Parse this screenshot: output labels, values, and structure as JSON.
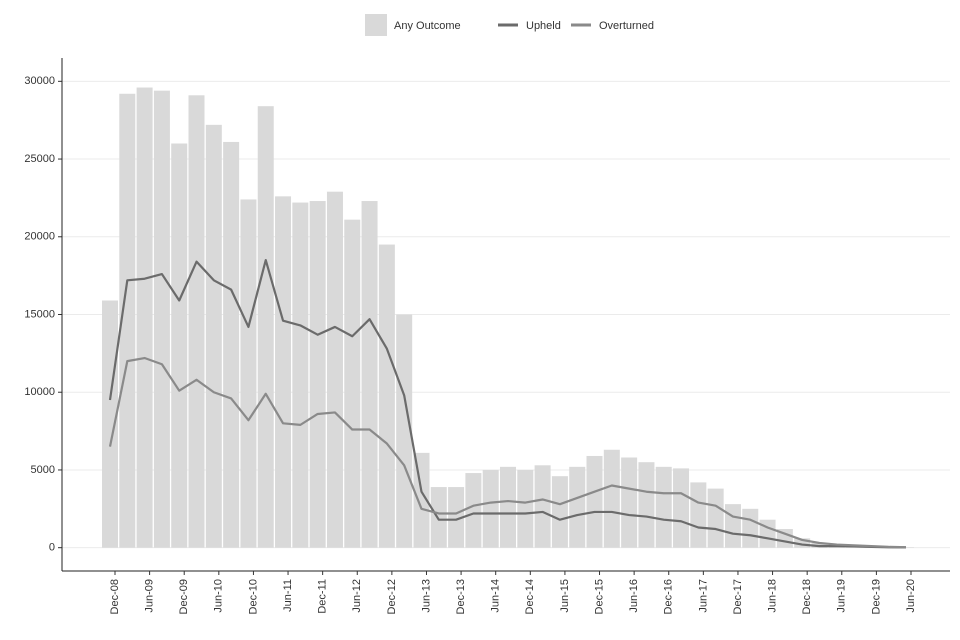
{
  "chart_data": {
    "type": "bar_line",
    "categories": [
      "Dec-08",
      null,
      "Jun-09",
      null,
      "Dec-09",
      null,
      "Jun-10",
      null,
      "Dec-10",
      null,
      "Jun-11",
      null,
      "Dec-11",
      null,
      "Jun-12",
      null,
      "Dec-12",
      null,
      "Jun-13",
      null,
      "Dec-13",
      null,
      "Jun-14",
      null,
      "Dec-14",
      null,
      "Jun-15",
      null,
      "Dec-15",
      null,
      "Jun-16",
      null,
      "Dec-16",
      null,
      "Jun-17",
      null,
      "Dec-17",
      null,
      "Jun-18",
      null,
      "Dec-18",
      null,
      "Jun-19",
      null,
      "Dec-19",
      null,
      "Jun-20"
    ],
    "bars": {
      "name": "Any Outcome",
      "color": "#d9d9d9",
      "values": [
        15900,
        29200,
        29600,
        29400,
        26000,
        29100,
        27200,
        26100,
        22400,
        28400,
        22600,
        22200,
        22300,
        22900,
        21100,
        22300,
        19500,
        15000,
        6100,
        3900,
        3900,
        4800,
        5000,
        5200,
        5000,
        5300,
        4600,
        5200,
        5900,
        6300,
        5800,
        5500,
        5200,
        5100,
        4200,
        3800,
        2800,
        2500,
        1800,
        1200,
        600,
        300,
        200,
        150,
        100,
        50,
        30
      ]
    },
    "series": [
      {
        "name": "Upheld",
        "color": "#6b6b6b",
        "values": [
          9500,
          17200,
          17300,
          17600,
          15900,
          18400,
          17200,
          16600,
          14200,
          18500,
          14600,
          14300,
          13700,
          14200,
          13600,
          14700,
          12800,
          9800,
          3600,
          1800,
          1800,
          2200,
          2200,
          2200,
          2200,
          2300,
          1800,
          2100,
          2300,
          2300,
          2100,
          2000,
          1800,
          1700,
          1300,
          1200,
          900,
          800,
          600,
          400,
          200,
          100,
          100,
          80,
          50,
          30,
          20
        ]
      },
      {
        "name": "Overturned",
        "color": "#8a8a8a",
        "values": [
          6500,
          12000,
          12200,
          11800,
          10100,
          10800,
          10000,
          9600,
          8200,
          9900,
          8000,
          7900,
          8600,
          8700,
          7600,
          7600,
          6700,
          5300,
          2500,
          2200,
          2200,
          2700,
          2900,
          3000,
          2900,
          3100,
          2800,
          3200,
          3600,
          4000,
          3800,
          3600,
          3500,
          3500,
          2900,
          2700,
          2000,
          1800,
          1300,
          900,
          500,
          300,
          200,
          150,
          100,
          50,
          30
        ]
      }
    ],
    "ylim": [
      -1500,
      31500
    ],
    "yticks": [
      0,
      5000,
      10000,
      15000,
      20000,
      25000,
      30000
    ],
    "grid": true,
    "legend": "top"
  }
}
